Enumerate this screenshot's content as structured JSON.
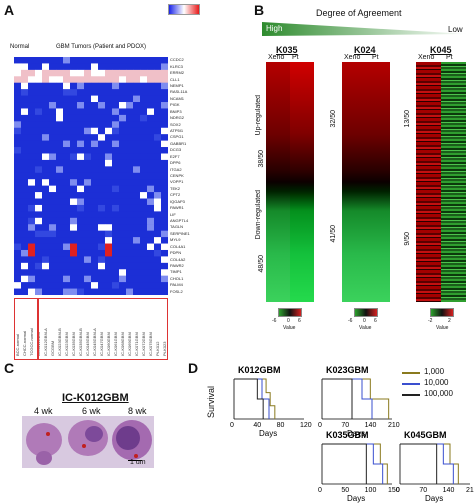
{
  "panelA": {
    "letter": "A",
    "header_normal": "Normal",
    "header_tumors": "GBM Tumors (Patient and PDOX)",
    "genes": [
      "CCDC2",
      "KLRC3",
      "ERRM2",
      "CLL1",
      "NEMP1",
      "RASL11A",
      "NCAM1",
      "PIGK",
      "BNIP3",
      "NDRG2",
      "SOX2",
      "ATP5I1",
      "CSPG1",
      "GABBR1",
      "DCG3",
      "E2F7",
      "DPP6",
      "ITGA2",
      "CENPK",
      "VOPP1",
      "TEK2",
      "CPT2",
      "IQGAP3",
      "PAWR1",
      "LIF",
      "ANGPTL4",
      "TAGLN",
      "SERPINE1",
      "MYL9",
      "COL4A1",
      "PDPN",
      "COL4A2",
      "PAWR2",
      "TIMP1",
      "CHOL1",
      "PALM4",
      "FOSL2"
    ],
    "samples": [
      "BCC-normal",
      "CHCC-normal",
      "TCGCC-normal",
      "IC-K012GBM",
      "IC-K012GBM-A",
      "GCGBM",
      "IC-K023GBM-B",
      "IC-K023GBM",
      "IC-K035GBM",
      "IC-K035GBM-B",
      "IC-K045GBM",
      "IC-K045GBM-A",
      "IC-K047GBM",
      "IC-K060GBM",
      "IC-K061GBM",
      "IC-K068GBM",
      "IC-K069GBM",
      "IC-K071GBM",
      "IC-K072GBM",
      "IC-K075GBM",
      "Pt-K012",
      "Pt-K023"
    ]
  },
  "panelB": {
    "letter": "B",
    "degree_label": "Degree of Agreement",
    "high": "High",
    "low": "Low",
    "up_regulated": "Up-regulated",
    "down_regulated": "Down-regulated",
    "groups": [
      {
        "id": "K035",
        "cols": [
          "Xeno",
          "Pt"
        ],
        "up": "38/50",
        "down": "48/50",
        "scale": [
          "-6",
          "0",
          "6"
        ],
        "value": "Value"
      },
      {
        "id": "K024",
        "cols": [
          "Xeno",
          "Pt"
        ],
        "up": "32/50",
        "down": "41/50",
        "scale": [
          "-6",
          "0",
          "6"
        ],
        "value": "Value"
      },
      {
        "id": "K045",
        "cols": [
          "Xeno",
          "Pt"
        ],
        "up": "13/50",
        "down": "9/50",
        "scale": [
          "-2",
          "2"
        ],
        "value": "Value"
      }
    ]
  },
  "panelC": {
    "letter": "C",
    "title": "IC-K012GBM",
    "timepoints": [
      "4 wk",
      "6 wk",
      "8 wk"
    ],
    "scale": "1 um"
  },
  "panelD": {
    "letter": "D",
    "ylabel": "Survival",
    "xlabel": "Days",
    "legend": [
      {
        "label": "1,000",
        "color": "#8a7a1e"
      },
      {
        "label": "10,000",
        "color": "#3a4fcf"
      },
      {
        "label": "100,000",
        "color": "#222222"
      }
    ],
    "plots": [
      {
        "title": "K012GBM",
        "ticks": [
          "0",
          "40",
          "80",
          "120"
        ],
        "xmax": 120,
        "series": [
          [
            [
              0,
              1
            ],
            [
              55,
              1
            ],
            [
              55,
              0.66
            ],
            [
              62,
              0.66
            ],
            [
              62,
              0.33
            ],
            [
              70,
              0.33
            ],
            [
              70,
              0
            ]
          ],
          [
            [
              0,
              1
            ],
            [
              48,
              1
            ],
            [
              48,
              0.5
            ],
            [
              60,
              0.5
            ],
            [
              60,
              0
            ]
          ],
          [
            [
              0,
              1
            ],
            [
              40,
              1
            ],
            [
              40,
              0.5
            ],
            [
              50,
              0.5
            ],
            [
              50,
              0
            ]
          ]
        ]
      },
      {
        "title": "K023GBM",
        "ticks": [
          "0",
          "70",
          "140",
          "210"
        ],
        "xmax": 210,
        "series": [
          [
            [
              0,
              1
            ],
            [
              145,
              1
            ],
            [
              145,
              0.5
            ],
            [
              200,
              0.5
            ],
            [
              200,
              0
            ]
          ],
          [
            [
              0,
              1
            ],
            [
              120,
              1
            ],
            [
              120,
              0.5
            ],
            [
              150,
              0.5
            ],
            [
              150,
              0
            ]
          ],
          [
            [
              0,
              1
            ],
            [
              90,
              1
            ],
            [
              90,
              0
            ]
          ]
        ]
      },
      {
        "title": "K035GBM",
        "ticks": [
          "0",
          "50",
          "100",
          "150"
        ],
        "xmax": 150,
        "series": [
          [
            [
              0,
              1
            ],
            [
              125,
              1
            ],
            [
              125,
              0.5
            ],
            [
              140,
              0.5
            ],
            [
              140,
              0
            ]
          ],
          [
            [
              0,
              1
            ],
            [
              110,
              1
            ],
            [
              110,
              0.5
            ],
            [
              130,
              0.5
            ],
            [
              130,
              0
            ]
          ],
          [
            [
              0,
              1
            ],
            [
              95,
              1
            ],
            [
              95,
              0
            ]
          ]
        ]
      },
      {
        "title": "K045GBM",
        "ticks": [
          "0",
          "70",
          "140",
          "210"
        ],
        "xmax": 210,
        "series": [
          [
            [
              0,
              1
            ],
            [
              150,
              1
            ],
            [
              150,
              0.5
            ],
            [
              175,
              0.5
            ],
            [
              175,
              0
            ]
          ],
          [
            [
              0,
              1
            ],
            [
              130,
              1
            ],
            [
              130,
              0.5
            ],
            [
              160,
              0.5
            ],
            [
              160,
              0
            ]
          ],
          [
            [
              0,
              1
            ],
            [
              110,
              1
            ],
            [
              110,
              0
            ]
          ]
        ]
      }
    ]
  }
}
